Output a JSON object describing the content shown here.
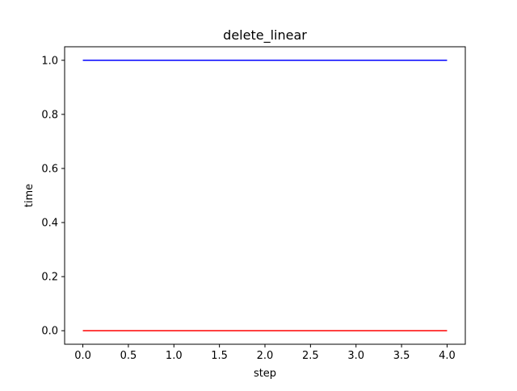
{
  "chart_data": {
    "type": "line",
    "title": "delete_linear",
    "xlabel": "step",
    "ylabel": "time",
    "x": [
      0,
      1,
      2,
      3,
      4
    ],
    "series": [
      {
        "color": "#0000ff",
        "values": [
          1,
          1,
          1,
          1,
          1
        ]
      },
      {
        "color": "#ff0000",
        "values": [
          0,
          0,
          0,
          0,
          0
        ]
      }
    ],
    "xlim": [
      -0.2,
      4.2
    ],
    "ylim": [
      -0.05,
      1.05
    ],
    "xticks": [
      0.0,
      0.5,
      1.0,
      1.5,
      2.0,
      2.5,
      3.0,
      3.5,
      4.0
    ],
    "xtick_labels": [
      "0.0",
      "0.5",
      "1.0",
      "1.5",
      "2.0",
      "2.5",
      "3.0",
      "3.5",
      "4.0"
    ],
    "yticks": [
      0.0,
      0.2,
      0.4,
      0.6,
      0.8,
      1.0
    ],
    "ytick_labels": [
      "0.0",
      "0.2",
      "0.4",
      "0.6",
      "0.8",
      "1.0"
    ],
    "grid": false,
    "legend": false
  }
}
